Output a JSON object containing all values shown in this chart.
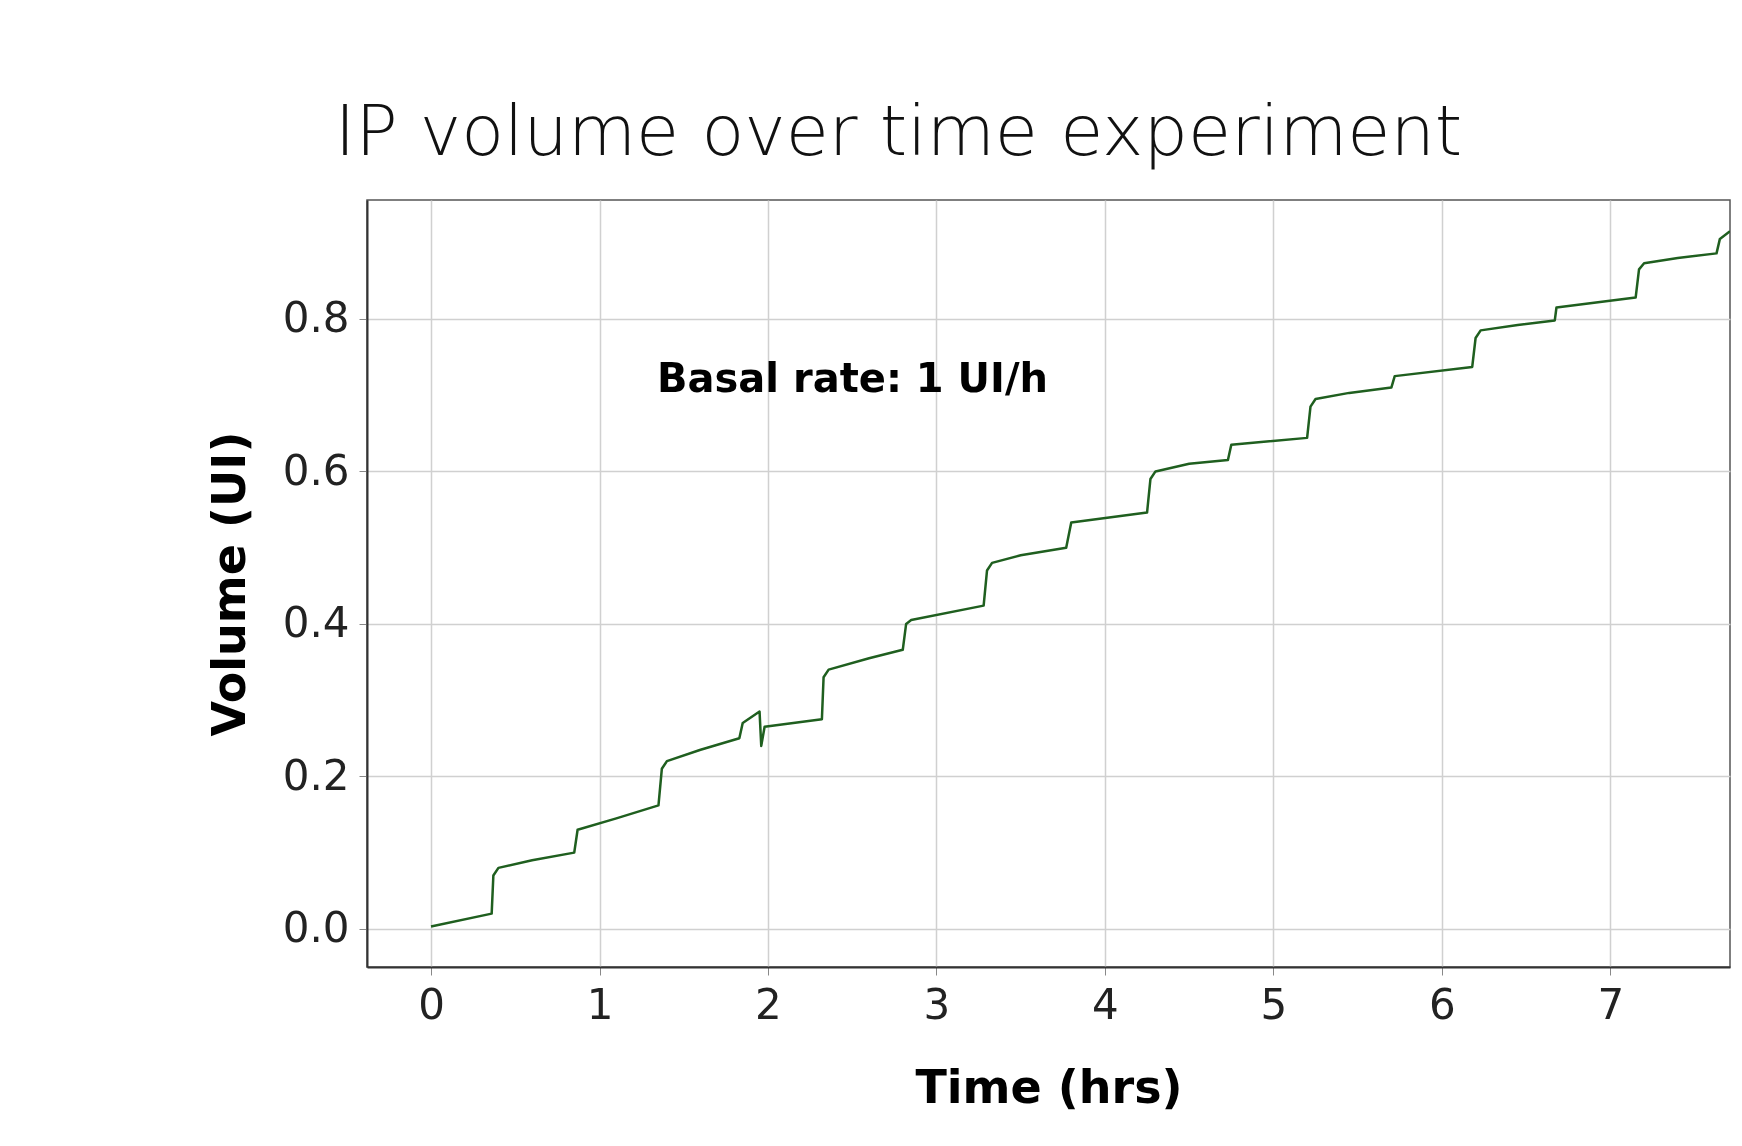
{
  "chart_data": {
    "type": "line",
    "title": "IP volume over time experiment",
    "xlabel": "Time (hrs)",
    "ylabel": "Volume  (UI)",
    "annotations": [
      "Basal rate: 1 UI/h"
    ],
    "xlim": [
      -0.38,
      7.71
    ],
    "ylim": [
      -0.05,
      0.956
    ],
    "xticks": [
      0,
      1,
      2,
      3,
      4,
      5,
      6,
      7
    ],
    "yticks": [
      {
        "value": 0,
        "label": "0.0"
      },
      {
        "value": 0.2,
        "label": "0.2"
      },
      {
        "value": 0.4,
        "label": "0.4"
      },
      {
        "value": 0.6,
        "label": "0.6"
      },
      {
        "value": 0.8,
        "label": "0.8"
      }
    ],
    "grid": true,
    "marker": "none",
    "line_style": "solid",
    "series": [
      {
        "color": "#1f5f1f",
        "x": [
          0,
          0.36,
          0.37,
          0.4,
          0.6,
          0.85,
          0.87,
          1.1,
          1.35,
          1.37,
          1.4,
          1.6,
          1.83,
          1.85,
          1.95,
          1.96,
          1.98,
          2.32,
          2.33,
          2.36,
          2.6,
          2.8,
          2.82,
          2.85,
          3.28,
          3.3,
          3.33,
          3.5,
          3.77,
          3.8,
          4.25,
          4.27,
          4.3,
          4.5,
          4.73,
          4.75,
          5.2,
          5.22,
          5.25,
          5.45,
          5.7,
          5.72,
          6.18,
          6.2,
          6.23,
          6.45,
          6.67,
          6.68,
          7.15,
          7.17,
          7.2,
          7.4,
          7.63,
          7.65,
          7.71
        ],
        "values": [
          0.003,
          0.02,
          0.07,
          0.08,
          0.09,
          0.1,
          0.13,
          0.145,
          0.162,
          0.21,
          0.22,
          0.235,
          0.25,
          0.27,
          0.285,
          0.24,
          0.265,
          0.275,
          0.33,
          0.34,
          0.355,
          0.366,
          0.4,
          0.405,
          0.424,
          0.47,
          0.48,
          0.49,
          0.5,
          0.533,
          0.546,
          0.59,
          0.6,
          0.61,
          0.615,
          0.635,
          0.644,
          0.685,
          0.695,
          0.703,
          0.71,
          0.725,
          0.737,
          0.775,
          0.785,
          0.792,
          0.798,
          0.815,
          0.828,
          0.865,
          0.873,
          0.88,
          0.886,
          0.905,
          0.915
        ]
      }
    ]
  }
}
